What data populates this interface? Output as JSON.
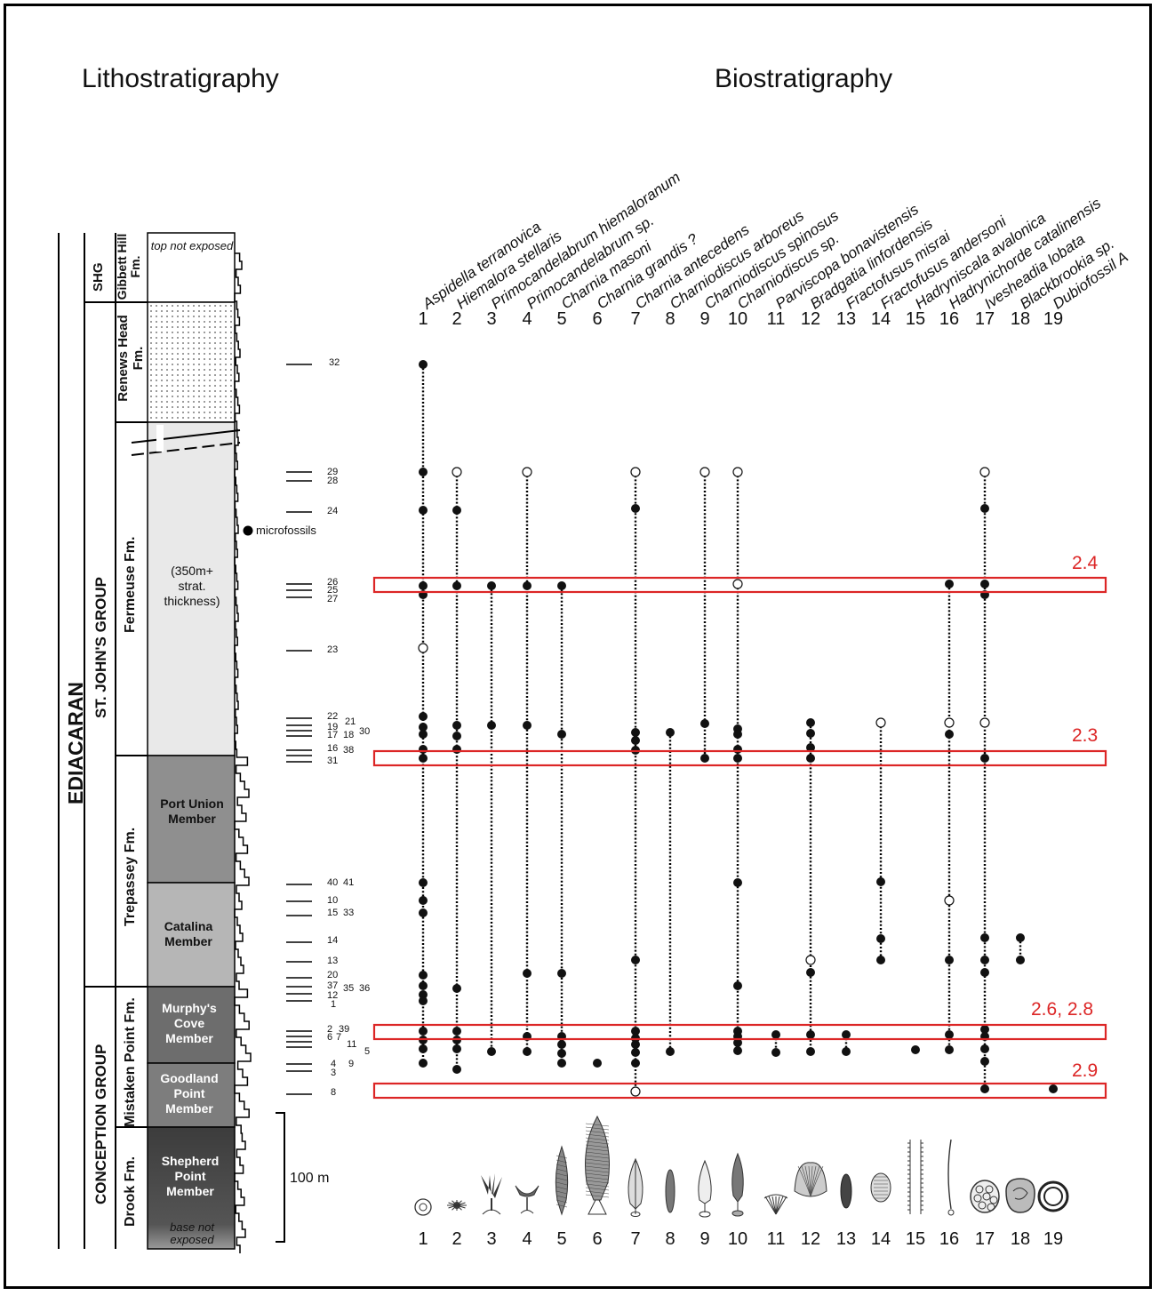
{
  "titles": {
    "litho": "Lithostratigraphy",
    "bio": "Biostratigraphy"
  },
  "litho": {
    "era": "EDIACARAN",
    "groups": [
      "SHG",
      "ST. JOHN'S GROUP",
      "CONCEPTION GROUP"
    ],
    "formations": [
      "Gibbett Hill Fm.",
      "Renews Head Fm.",
      "Fermeuse Fm.",
      "Trepassey Fm.",
      "Mistaken Point Fm.",
      "Drook Fm."
    ],
    "members": [
      "Port Union Member",
      "Catalina Member",
      "Murphy's Cove Member",
      "Goodland Point Member",
      "Shepherd Point Member"
    ],
    "top_note": "top not exposed",
    "base_note": "base not exposed",
    "thickness_note": "(350m+ strat. thickness)",
    "microfossils": "microfossils",
    "scale": "100 m"
  },
  "levels": [
    "32",
    "29",
    "28",
    "24",
    "26",
    "25",
    "27",
    "23",
    "22",
    "21",
    "19",
    "17",
    "18",
    "30",
    "16",
    "38",
    "31",
    "40",
    "41",
    "10",
    "15",
    "33",
    "14",
    "13",
    "20",
    "37",
    "35",
    "36",
    "12",
    "1",
    "2",
    "39",
    "6",
    "7",
    "11",
    "5",
    "4",
    "9",
    "3",
    "8"
  ],
  "taxa": [
    {
      "n": 1,
      "name": "Aspidella terranovica"
    },
    {
      "n": 2,
      "name": "Hiemalora stellaris"
    },
    {
      "n": 3,
      "name": "Primocandelabrum hiemaloranum"
    },
    {
      "n": 4,
      "name": "Primocandelabrum sp."
    },
    {
      "n": 5,
      "name": "Charnia masoni"
    },
    {
      "n": 6,
      "name": "Charnia grandis ?"
    },
    {
      "n": 7,
      "name": "Charnia antecedens"
    },
    {
      "n": 8,
      "name": "Charniodiscus arboreus"
    },
    {
      "n": 9,
      "name": "Charniodiscus spinosus"
    },
    {
      "n": 10,
      "name": "Charniodiscus sp."
    },
    {
      "n": 11,
      "name": "Parviscopa bonavistensis"
    },
    {
      "n": 12,
      "name": "Bradgatia linfordensis"
    },
    {
      "n": 13,
      "name": "Fractofusus misrai"
    },
    {
      "n": 14,
      "name": "Fractofusus andersoni"
    },
    {
      "n": 15,
      "name": "Hadryniscala avalonica"
    },
    {
      "n": 16,
      "name": "Hadrynichorde catalinensis"
    },
    {
      "n": 17,
      "name": "Ivesheadia lobata"
    },
    {
      "n": 18,
      "name": "Blackbrookia sp."
    },
    {
      "n": 19,
      "name": "Dubiofossil A"
    }
  ],
  "highlights": [
    {
      "label": "2.4",
      "color": "#dc2626"
    },
    {
      "label": "2.3",
      "color": "#dc2626"
    },
    {
      "label": "2.6, 2.8",
      "color": "#dc2626"
    },
    {
      "label": "2.9",
      "color": "#dc2626"
    }
  ]
}
